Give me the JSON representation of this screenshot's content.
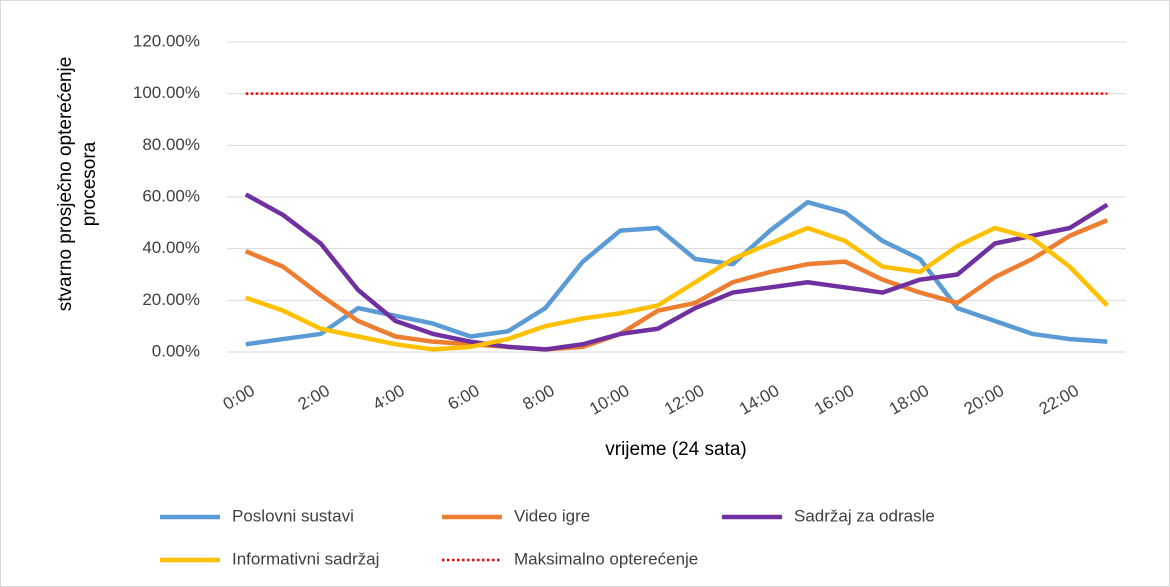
{
  "chart_data": {
    "type": "line",
    "x_label": "vrijeme (24 sata)",
    "y_label": "stvarno prosječno opterećenje procesora",
    "categories": [
      "0:00",
      null,
      "2:00",
      null,
      "4:00",
      null,
      "6:00",
      null,
      "8:00",
      null,
      "10:00",
      null,
      "12:00",
      null,
      "14:00",
      null,
      "16:00",
      null,
      "18:00",
      null,
      "20:00",
      null,
      "22:00",
      null
    ],
    "series": [
      {
        "name": "Poslovni sustavi",
        "color": "#5b9bd5",
        "values": [
          3,
          5,
          7,
          17,
          14,
          11,
          6,
          8,
          17,
          35,
          47,
          48,
          36,
          34,
          47,
          58,
          54,
          43,
          36,
          17,
          12,
          7,
          5,
          4
        ]
      },
      {
        "name": "Video igre",
        "color": "#ed7d31",
        "values": [
          39,
          33,
          22,
          12,
          6,
          4,
          3,
          2,
          1,
          2,
          7,
          16,
          19,
          27,
          31,
          34,
          35,
          28,
          23,
          19,
          29,
          36,
          45,
          51
        ]
      },
      {
        "name": "Sadržaj za odrasle",
        "color": "#7030a0",
        "values": [
          61,
          53,
          42,
          24,
          12,
          7,
          4,
          2,
          1,
          3,
          7,
          9,
          17,
          23,
          25,
          27,
          25,
          23,
          28,
          30,
          42,
          45,
          48,
          57
        ]
      },
      {
        "name": "Informativni sadržaj",
        "color": "#ffc000",
        "values": [
          21,
          16,
          9,
          6,
          3,
          1,
          2,
          5,
          10,
          13,
          15,
          18,
          27,
          36,
          42,
          48,
          43,
          33,
          31,
          41,
          48,
          44,
          33,
          18
        ]
      },
      {
        "name": "Maksimalno opterećenje",
        "color": "#ff0000",
        "style": "dotted",
        "values": [
          100,
          100,
          100,
          100,
          100,
          100,
          100,
          100,
          100,
          100,
          100,
          100,
          100,
          100,
          100,
          100,
          100,
          100,
          100,
          100,
          100,
          100,
          100,
          100
        ]
      }
    ],
    "ylim": [
      0,
      120
    ],
    "yticks": [
      {
        "value": 0,
        "label": "0.00%"
      },
      {
        "value": 20,
        "label": "20.00%"
      },
      {
        "value": 40,
        "label": "40.00%"
      },
      {
        "value": 60,
        "label": "60.00%"
      },
      {
        "value": 80,
        "label": "80.00%"
      },
      {
        "value": 100,
        "label": "100.00%"
      },
      {
        "value": 120,
        "label": "120.00%"
      }
    ],
    "grid": true,
    "legend": "bottom"
  }
}
